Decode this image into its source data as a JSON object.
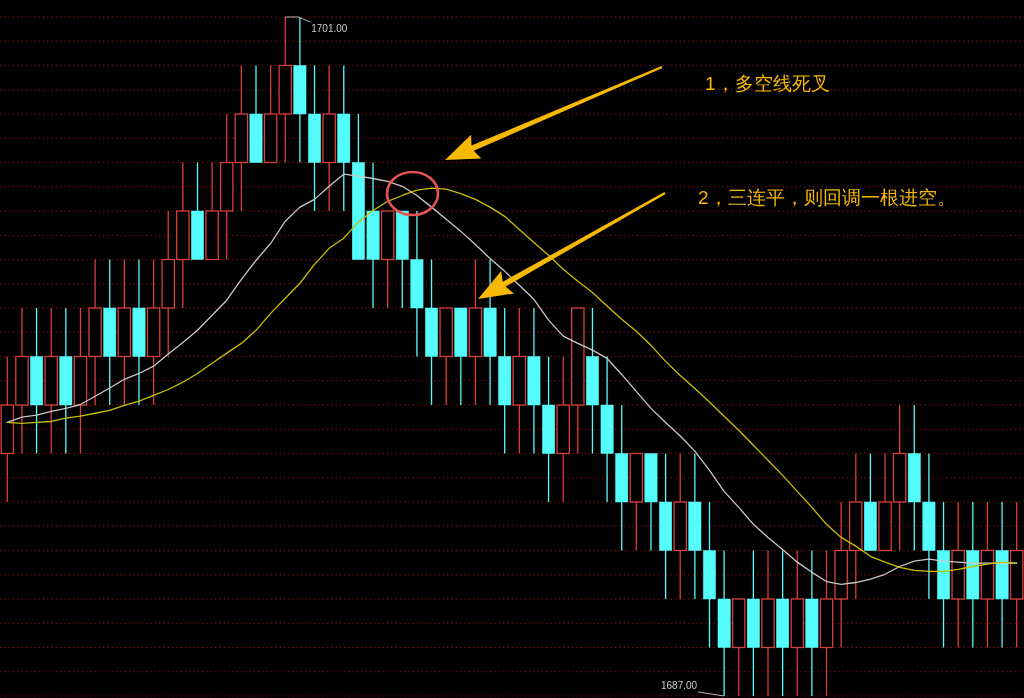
{
  "chart_data": {
    "type": "candlestick",
    "categories": [
      null,
      null,
      null,
      null,
      null,
      null,
      null,
      null,
      null,
      null,
      null,
      null,
      null,
      null,
      null,
      null,
      null,
      null,
      null,
      null,
      null,
      null,
      null,
      null,
      null,
      null,
      null,
      null,
      null,
      null,
      null,
      null,
      null,
      null,
      null,
      null,
      null,
      null,
      null,
      null,
      null,
      null,
      null,
      null,
      null,
      null,
      null,
      null,
      null,
      null,
      null,
      null,
      null,
      null,
      null,
      null,
      null,
      null,
      null,
      null,
      null,
      null,
      null,
      null,
      null,
      null,
      null,
      null,
      null,
      null
    ],
    "ohlc": [
      [
        1692,
        1694,
        1691,
        1693
      ],
      [
        1693,
        1695,
        1692,
        1694
      ],
      [
        1694,
        1695,
        1692,
        1693
      ],
      [
        1693,
        1695,
        1692,
        1694
      ],
      [
        1694,
        1695,
        1692,
        1693
      ],
      [
        1693,
        1695,
        1692,
        1694
      ],
      [
        1694,
        1696,
        1693,
        1695
      ],
      [
        1695,
        1696,
        1693,
        1694
      ],
      [
        1694,
        1696,
        1693,
        1695
      ],
      [
        1695,
        1696,
        1693,
        1694
      ],
      [
        1694,
        1696,
        1693,
        1695
      ],
      [
        1695,
        1697,
        1694,
        1696
      ],
      [
        1696,
        1698,
        1695,
        1697
      ],
      [
        1697,
        1698,
        1696,
        1696
      ],
      [
        1696,
        1698,
        1696,
        1697
      ],
      [
        1697,
        1699,
        1696,
        1698
      ],
      [
        1698,
        1700,
        1697,
        1699
      ],
      [
        1699,
        1700,
        1698,
        1698
      ],
      [
        1698,
        1700,
        1698,
        1699
      ],
      [
        1699,
        1701,
        1698,
        1700
      ],
      [
        1700,
        1701,
        1698,
        1699
      ],
      [
        1699,
        1700,
        1697,
        1698
      ],
      [
        1698,
        1700,
        1697,
        1699
      ],
      [
        1699,
        1700,
        1697,
        1698
      ],
      [
        1698,
        1699,
        1696,
        1696
      ],
      [
        1697,
        1698,
        1695,
        1696
      ],
      [
        1696,
        1697,
        1695,
        1697
      ],
      [
        1697,
        1697,
        1695,
        1696
      ],
      [
        1696,
        1697,
        1694,
        1695
      ],
      [
        1695,
        1696,
        1693,
        1694
      ],
      [
        1694,
        1695,
        1693,
        1695
      ],
      [
        1695,
        1695,
        1693,
        1694
      ],
      [
        1694,
        1696,
        1693,
        1695
      ],
      [
        1695,
        1696,
        1693,
        1694
      ],
      [
        1694,
        1695,
        1692,
        1693
      ],
      [
        1693,
        1695,
        1692,
        1694
      ],
      [
        1694,
        1695,
        1692,
        1693
      ],
      [
        1693,
        1694,
        1691,
        1692
      ],
      [
        1692,
        1694,
        1691,
        1693
      ],
      [
        1693,
        1695,
        1692,
        1695
      ],
      [
        1694,
        1695,
        1692,
        1693
      ],
      [
        1693,
        1694,
        1691,
        1692
      ],
      [
        1692,
        1693,
        1690,
        1691
      ],
      [
        1691,
        1692,
        1690,
        1692
      ],
      [
        1692,
        1692,
        1690,
        1691
      ],
      [
        1691,
        1692,
        1689,
        1690
      ],
      [
        1690,
        1692,
        1689,
        1691
      ],
      [
        1691,
        1692,
        1689,
        1690
      ],
      [
        1690,
        1691,
        1688,
        1689
      ],
      [
        1689,
        1690,
        1687,
        1688
      ],
      [
        1688,
        1689,
        1687,
        1689
      ],
      [
        1689,
        1690,
        1687,
        1688
      ],
      [
        1688,
        1690,
        1687,
        1689
      ],
      [
        1689,
        1690,
        1687,
        1688
      ],
      [
        1688,
        1690,
        1687,
        1689
      ],
      [
        1689,
        1690,
        1687,
        1688
      ],
      [
        1688,
        1690,
        1687,
        1689
      ],
      [
        1689,
        1691,
        1688,
        1690
      ],
      [
        1690,
        1692,
        1689,
        1691
      ],
      [
        1691,
        1692,
        1690,
        1690
      ],
      [
        1690,
        1692,
        1690,
        1691
      ],
      [
        1691,
        1693,
        1690,
        1692
      ],
      [
        1692,
        1693,
        1690,
        1691
      ],
      [
        1691,
        1692,
        1689,
        1690
      ],
      [
        1690,
        1691,
        1688,
        1689
      ],
      [
        1689,
        1691,
        1688,
        1690
      ],
      [
        1690,
        1691,
        1688,
        1689
      ],
      [
        1689,
        1691,
        1688,
        1690
      ],
      [
        1690,
        1691,
        1688,
        1689
      ],
      [
        1689,
        1691,
        1688,
        1690
      ]
    ],
    "colors": [
      "#d8403c",
      "#d8403c",
      "#54fcfc",
      "#d8403c",
      "#54fcfc",
      "#d8403c",
      "#d8403c",
      "#54fcfc",
      "#d8403c",
      "#54fcfc",
      "#d8403c",
      "#d8403c",
      "#d8403c",
      "#54fcfc",
      "#d8403c",
      "#d8403c",
      "#d8403c",
      "#54fcfc",
      "#d8403c",
      "#d8403c",
      "#54fcfc",
      "#54fcfc",
      "#d8403c",
      "#54fcfc",
      "#54fcfc",
      "#54fcfc",
      "#d8403c",
      "#54fcfc",
      "#54fcfc",
      "#54fcfc",
      "#d8403c",
      "#54fcfc",
      "#d8403c",
      "#54fcfc",
      "#54fcfc",
      "#d8403c",
      "#54fcfc",
      "#54fcfc",
      "#d8403c",
      "#d8403c",
      "#54fcfc",
      "#54fcfc",
      "#54fcfc",
      "#d8403c",
      "#54fcfc",
      "#54fcfc",
      "#d8403c",
      "#54fcfc",
      "#54fcfc",
      "#54fcfc",
      "#d8403c",
      "#54fcfc",
      "#d8403c",
      "#54fcfc",
      "#d8403c",
      "#54fcfc",
      "#d8403c",
      "#d8403c",
      "#d8403c",
      "#54fcfc",
      "#d8403c",
      "#d8403c",
      "#54fcfc",
      "#54fcfc",
      "#54fcfc",
      "#d8403c",
      "#54fcfc",
      "#d8403c",
      "#54fcfc",
      "#d8403c"
    ],
    "series": [
      {
        "type": "line",
        "color": "#c8c8c8",
        "values": [
          1692.64,
          1692.75,
          1692.79,
          1692.87,
          1692.93,
          1693.01,
          1693.18,
          1693.35,
          1693.53,
          1693.65,
          1693.8,
          1694.05,
          1694.29,
          1694.54,
          1694.85,
          1695.16,
          1695.59,
          1695.98,
          1696.33,
          1696.79,
          1697.08,
          1697.24,
          1697.51,
          1697.76,
          1697.72,
          1697.67,
          1697.61,
          1697.51,
          1697.32,
          1697.08,
          1696.83,
          1696.58,
          1696.31,
          1696.02,
          1695.76,
          1695.47,
          1695.18,
          1694.75,
          1694.42,
          1694.27,
          1694.13,
          1693.96,
          1693.63,
          1693.28,
          1692.93,
          1692.64,
          1692.36,
          1692.05,
          1691.65,
          1691.22,
          1690.89,
          1690.54,
          1690.27,
          1690.02,
          1689.76,
          1689.55,
          1689.36,
          1689.3,
          1689.34,
          1689.41,
          1689.51,
          1689.67,
          1689.78,
          1689.82,
          1689.78,
          1689.76,
          1689.74,
          1689.74,
          1689.74,
          1689.74
        ]
      },
      {
        "type": "line",
        "color": "#c8c000",
        "values": [
          1692.64,
          1692.62,
          1692.64,
          1692.66,
          1692.73,
          1692.77,
          1692.83,
          1692.89,
          1692.99,
          1693.08,
          1693.2,
          1693.32,
          1693.47,
          1693.65,
          1693.86,
          1694.07,
          1694.27,
          1694.54,
          1694.89,
          1695.2,
          1695.51,
          1695.9,
          1696.23,
          1696.44,
          1696.77,
          1697.01,
          1697.2,
          1697.32,
          1697.43,
          1697.47,
          1697.45,
          1697.36,
          1697.24,
          1697.08,
          1696.89,
          1696.62,
          1696.35,
          1696.09,
          1695.8,
          1695.55,
          1695.32,
          1695.04,
          1694.77,
          1694.52,
          1694.23,
          1693.9,
          1693.61,
          1693.34,
          1693.06,
          1692.77,
          1692.48,
          1692.17,
          1691.86,
          1691.55,
          1691.22,
          1690.89,
          1690.54,
          1690.27,
          1690.09,
          1689.88,
          1689.76,
          1689.65,
          1689.59,
          1689.57,
          1689.57,
          1689.61,
          1689.67,
          1689.72,
          1689.76,
          1689.74
        ]
      }
    ],
    "ylim": [
      1687,
      1701
    ],
    "yticks": [
      {
        "value": 1687,
        "label": null
      },
      {
        "value": 1687.5,
        "label": null
      },
      {
        "value": 1688,
        "label": null
      },
      {
        "value": 1688.5,
        "label": null
      },
      {
        "value": 1689,
        "label": null
      },
      {
        "value": 1689.5,
        "label": null
      },
      {
        "value": 1690,
        "label": null
      },
      {
        "value": 1690.5,
        "label": null
      },
      {
        "value": 1691,
        "label": null
      },
      {
        "value": 1691.5,
        "label": null
      },
      {
        "value": 1692,
        "label": null
      },
      {
        "value": 1692.5,
        "label": null
      },
      {
        "value": 1693,
        "label": null
      },
      {
        "value": 1693.5,
        "label": null
      },
      {
        "value": 1694,
        "label": null
      },
      {
        "value": 1694.5,
        "label": null
      },
      {
        "value": 1695,
        "label": null
      },
      {
        "value": 1695.5,
        "label": null
      },
      {
        "value": 1696,
        "label": null
      },
      {
        "value": 1696.5,
        "label": null
      },
      {
        "value": 1697,
        "label": null
      },
      {
        "value": 1697.5,
        "label": null
      },
      {
        "value": 1698,
        "label": null
      },
      {
        "value": 1698.5,
        "label": null
      },
      {
        "value": 1699,
        "label": null
      },
      {
        "value": 1699.5,
        "label": null
      },
      {
        "value": 1700,
        "label": null
      },
      {
        "value": 1700.5,
        "label": null
      },
      {
        "value": 1701,
        "label": null
      }
    ],
    "grid": "y",
    "tick_labels": false,
    "annotations": [
      "1701.00",
      "1687.00",
      "1，多空线死叉",
      "2，三连平，则回调一根进空。"
    ]
  }
}
